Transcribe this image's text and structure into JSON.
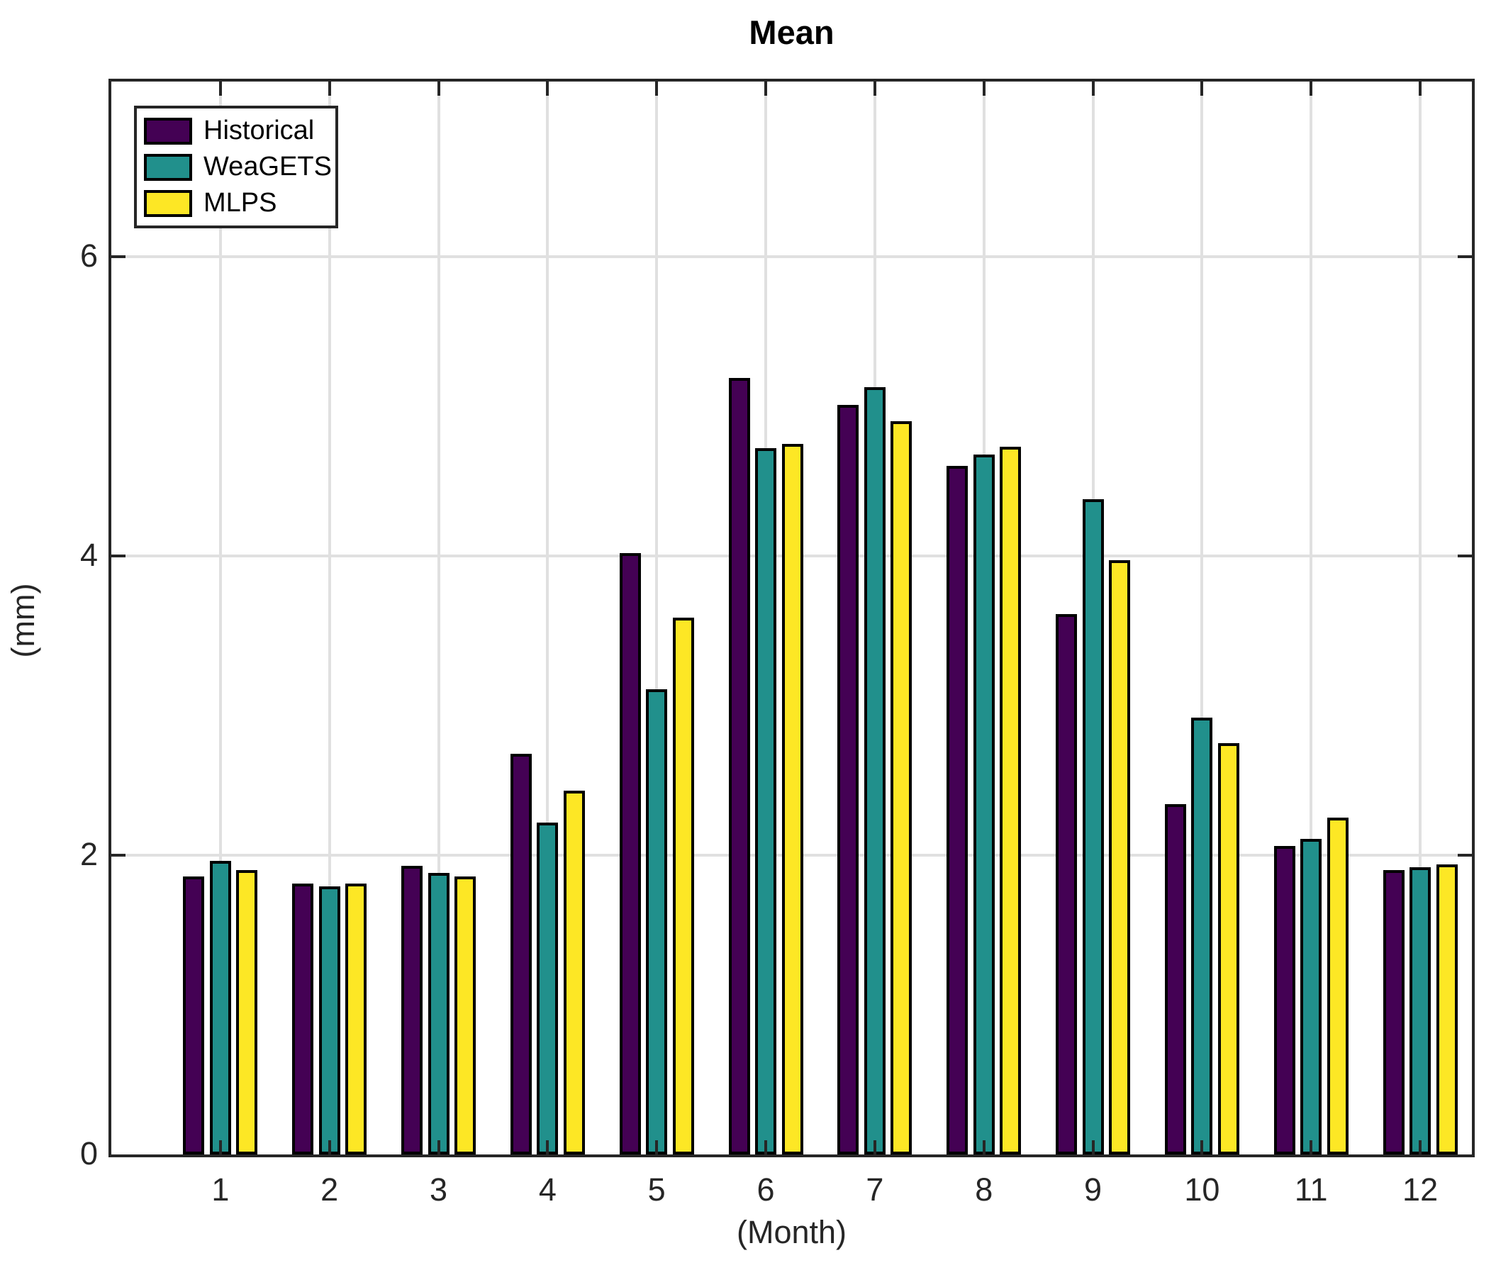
{
  "title": "Mean",
  "axis_labels": {
    "x": "(Month)",
    "y": "(mm)"
  },
  "legend": {
    "position": "northwest",
    "items": [
      {
        "label": "Historical",
        "color": "#440154"
      },
      {
        "label": "WeaGETS",
        "color": "#21908c"
      },
      {
        "label": "MLPS",
        "color": "#fde725"
      }
    ]
  },
  "chart_data": {
    "type": "bar",
    "title": "Mean",
    "xlabel": "(Month)",
    "ylabel": "(mm)",
    "categories": [
      1,
      2,
      3,
      4,
      5,
      6,
      7,
      8,
      9,
      10,
      11,
      12
    ],
    "series": [
      {
        "name": "Historical",
        "color": "#440154",
        "values": [
          1.86,
          1.81,
          1.93,
          2.68,
          4.02,
          5.19,
          5.01,
          4.6,
          3.61,
          2.34,
          2.06,
          1.9
        ]
      },
      {
        "name": "WeaGETS",
        "color": "#21908c",
        "values": [
          1.96,
          1.79,
          1.88,
          2.22,
          3.11,
          4.72,
          5.13,
          4.68,
          4.38,
          2.92,
          2.11,
          1.92
        ]
      },
      {
        "name": "MLPS",
        "color": "#fde725",
        "values": [
          1.9,
          1.81,
          1.86,
          2.43,
          3.59,
          4.75,
          4.9,
          4.73,
          3.97,
          2.75,
          2.25,
          1.94
        ]
      }
    ],
    "ylim": [
      0,
      7.19
    ],
    "yticks": [
      0,
      2,
      4,
      6
    ],
    "xticks": [
      "1",
      "2",
      "3",
      "4",
      "5",
      "6",
      "7",
      "8",
      "9",
      "10",
      "11",
      "12"
    ],
    "grid": true,
    "legend_position": "top-left",
    "colors": {
      "axis": "#262626",
      "grid": "#e0e0e0",
      "background": "#ffffff"
    }
  }
}
